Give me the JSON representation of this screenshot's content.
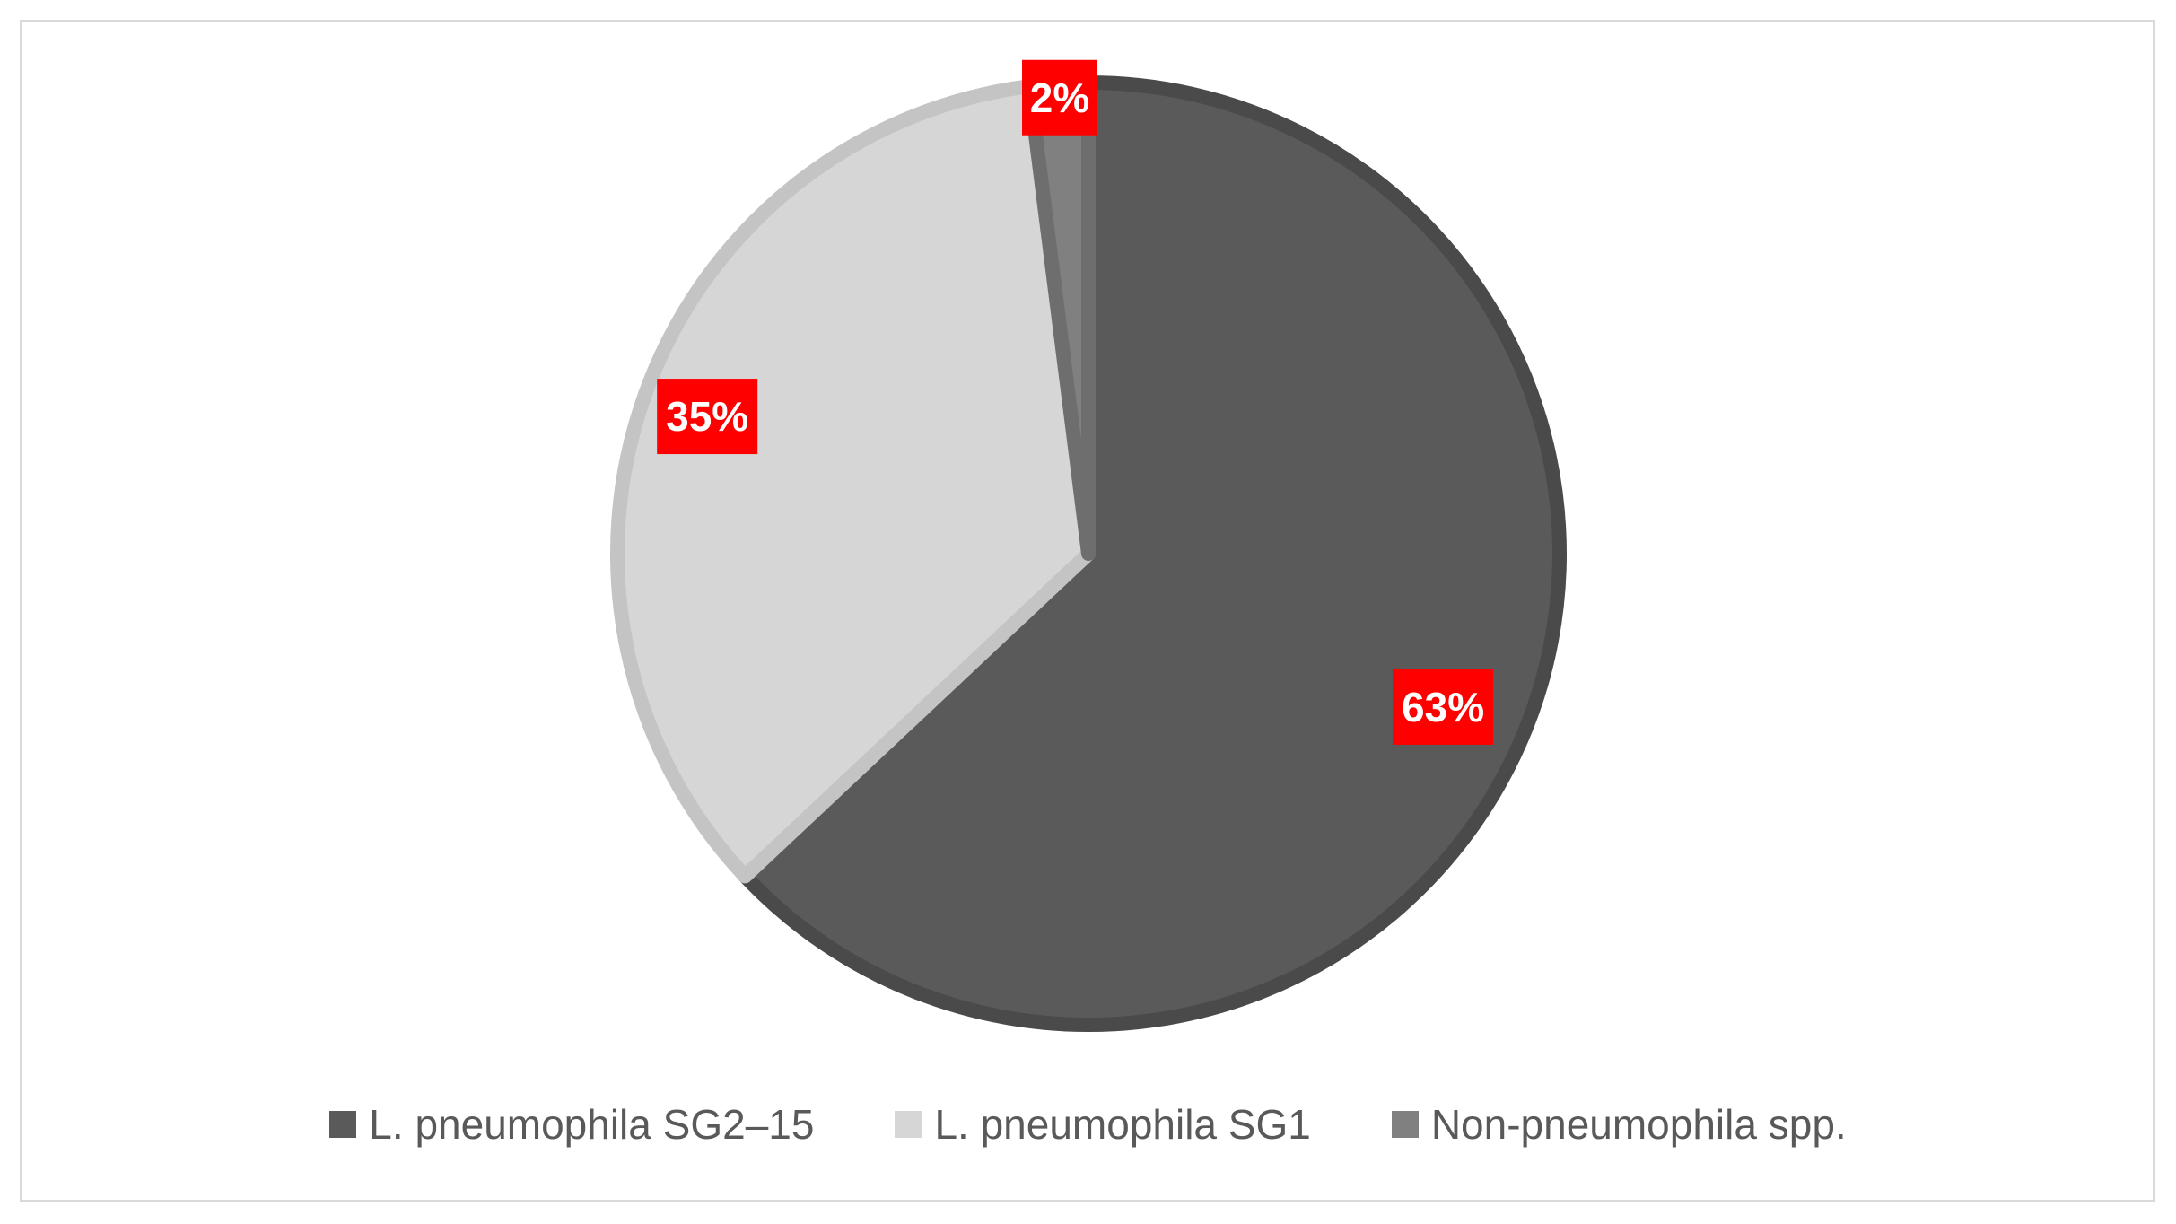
{
  "chart_data": {
    "type": "pie",
    "categories": [
      "L. pneumophila SG2–15",
      "L. pneumophila SG1",
      "Non-pneumophila spp."
    ],
    "values": [
      63,
      35,
      2
    ],
    "value_labels": [
      "63%",
      "35%",
      "2%"
    ],
    "colors": [
      "#5a5a5a",
      "#d6d6d6",
      "#808080"
    ],
    "edge_colors": [
      "#4a4a4a",
      "#c4c4c4",
      "#6e6e6e"
    ],
    "label_box_color": "#ff0000",
    "start_angle_deg": 0,
    "direction": "clockwise",
    "legend_position": "bottom",
    "title": ""
  }
}
